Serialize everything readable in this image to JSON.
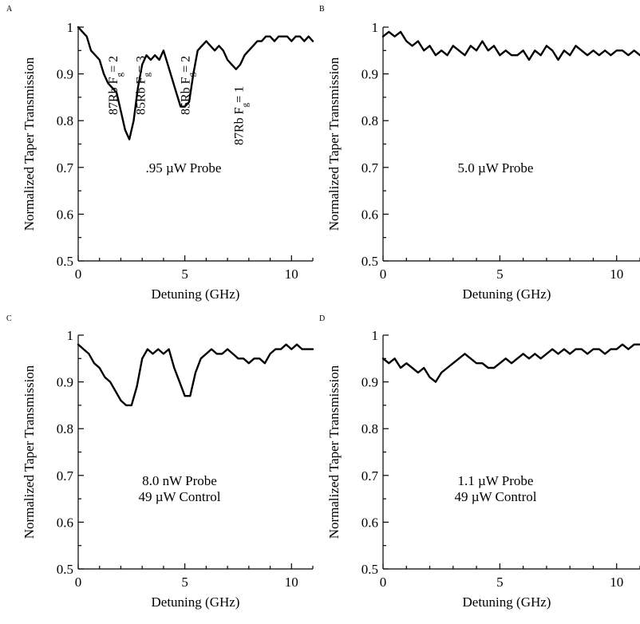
{
  "chart_data": [
    {
      "type": "line",
      "panel": "A",
      "xlabel": "Detuning (GHz)",
      "ylabel": "Normalized Taper Transmission",
      "xlim": [
        0,
        11
      ],
      "ylim": [
        0.5,
        1.0
      ],
      "xticks": [
        0,
        5,
        10
      ],
      "yticks": [
        0.5,
        0.6,
        0.7,
        0.8,
        0.9,
        1.0
      ],
      "ytick_labels": [
        "0.5",
        "0.6",
        "0.7",
        "0.8",
        "0.9",
        "1"
      ],
      "annotation_lines": [
        ".95 µW Probe"
      ],
      "peak_labels": [
        {
          "isotope": "87Rb",
          "f": "F",
          "sub": "g",
          "eq": "= 2",
          "x": 1.6
        },
        {
          "isotope": "85Rb",
          "f": "F",
          "sub": "g",
          "eq": "= 3",
          "x": 2.9
        },
        {
          "isotope": "85Rb",
          "f": "F",
          "sub": "g",
          "eq": "= 2",
          "x": 5.0
        },
        {
          "isotope": "87Rb",
          "f": "F",
          "sub": "g",
          "eq": "= 1",
          "x": 7.5
        }
      ],
      "series": [
        {
          "x": [
            0,
            0.2,
            0.4,
            0.6,
            0.8,
            1.0,
            1.2,
            1.4,
            1.6,
            1.8,
            2.0,
            2.2,
            2.4,
            2.6,
            2.8,
            3.0,
            3.2,
            3.4,
            3.6,
            3.8,
            4.0,
            4.2,
            4.4,
            4.6,
            4.8,
            5.0,
            5.2,
            5.4,
            5.6,
            5.8,
            6.0,
            6.2,
            6.4,
            6.6,
            6.8,
            7.0,
            7.2,
            7.4,
            7.6,
            7.8,
            8.0,
            8.2,
            8.4,
            8.6,
            8.8,
            9.0,
            9.2,
            9.4,
            9.6,
            9.8,
            10.0,
            10.2,
            10.4,
            10.6,
            10.8,
            11.0
          ],
          "y": [
            1.0,
            0.99,
            0.98,
            0.95,
            0.94,
            0.93,
            0.9,
            0.88,
            0.87,
            0.86,
            0.82,
            0.78,
            0.76,
            0.8,
            0.87,
            0.92,
            0.94,
            0.93,
            0.94,
            0.93,
            0.95,
            0.92,
            0.89,
            0.86,
            0.83,
            0.83,
            0.84,
            0.9,
            0.95,
            0.96,
            0.97,
            0.96,
            0.95,
            0.96,
            0.95,
            0.93,
            0.92,
            0.91,
            0.92,
            0.94,
            0.95,
            0.96,
            0.97,
            0.97,
            0.98,
            0.98,
            0.97,
            0.98,
            0.98,
            0.98,
            0.97,
            0.98,
            0.98,
            0.97,
            0.98,
            0.97
          ]
        }
      ]
    },
    {
      "type": "line",
      "panel": "B",
      "xlabel": "Detuning (GHz)",
      "ylabel": "Normalized Taper Transmission",
      "xlim": [
        0,
        11
      ],
      "ylim": [
        0.5,
        1.0
      ],
      "xticks": [
        0,
        5,
        10
      ],
      "yticks": [
        0.5,
        0.6,
        0.7,
        0.8,
        0.9,
        1.0
      ],
      "ytick_labels": [
        "0.5",
        "0.6",
        "0.7",
        "0.8",
        "0.9",
        "1"
      ],
      "annotation_lines": [
        "5.0 µW Probe"
      ],
      "peak_labels": [],
      "series": [
        {
          "x": [
            0,
            0.25,
            0.5,
            0.75,
            1.0,
            1.25,
            1.5,
            1.75,
            2.0,
            2.25,
            2.5,
            2.75,
            3.0,
            3.25,
            3.5,
            3.75,
            4.0,
            4.25,
            4.5,
            4.75,
            5.0,
            5.25,
            5.5,
            5.75,
            6.0,
            6.25,
            6.5,
            6.75,
            7.0,
            7.25,
            7.5,
            7.75,
            8.0,
            8.25,
            8.5,
            8.75,
            9.0,
            9.25,
            9.5,
            9.75,
            10.0,
            10.25,
            10.5,
            10.75,
            11.0
          ],
          "y": [
            0.98,
            0.99,
            0.98,
            0.99,
            0.97,
            0.96,
            0.97,
            0.95,
            0.96,
            0.94,
            0.95,
            0.94,
            0.96,
            0.95,
            0.94,
            0.96,
            0.95,
            0.97,
            0.95,
            0.96,
            0.94,
            0.95,
            0.94,
            0.94,
            0.95,
            0.93,
            0.95,
            0.94,
            0.96,
            0.95,
            0.93,
            0.95,
            0.94,
            0.96,
            0.95,
            0.94,
            0.95,
            0.94,
            0.95,
            0.94,
            0.95,
            0.95,
            0.94,
            0.95,
            0.94
          ]
        }
      ]
    },
    {
      "type": "line",
      "panel": "C",
      "xlabel": "Detuning (GHz)",
      "ylabel": "Normalized Taper Transmission",
      "xlim": [
        0,
        11
      ],
      "ylim": [
        0.5,
        1.0
      ],
      "xticks": [
        0,
        5,
        10
      ],
      "yticks": [
        0.5,
        0.6,
        0.7,
        0.8,
        0.9,
        1.0
      ],
      "ytick_labels": [
        "0.5",
        "0.6",
        "0.7",
        "0.8",
        "0.9",
        "1"
      ],
      "annotation_lines": [
        "8.0 nW Probe",
        "49 µW Control"
      ],
      "peak_labels": [],
      "series": [
        {
          "x": [
            0,
            0.25,
            0.5,
            0.75,
            1.0,
            1.25,
            1.5,
            1.75,
            2.0,
            2.25,
            2.5,
            2.75,
            3.0,
            3.25,
            3.5,
            3.75,
            4.0,
            4.25,
            4.5,
            4.75,
            5.0,
            5.25,
            5.5,
            5.75,
            6.0,
            6.25,
            6.5,
            6.75,
            7.0,
            7.25,
            7.5,
            7.75,
            8.0,
            8.25,
            8.5,
            8.75,
            9.0,
            9.25,
            9.5,
            9.75,
            10.0,
            10.25,
            10.5,
            10.75,
            11.0
          ],
          "y": [
            0.98,
            0.97,
            0.96,
            0.94,
            0.93,
            0.91,
            0.9,
            0.88,
            0.86,
            0.85,
            0.85,
            0.89,
            0.95,
            0.97,
            0.96,
            0.97,
            0.96,
            0.97,
            0.93,
            0.9,
            0.87,
            0.87,
            0.92,
            0.95,
            0.96,
            0.97,
            0.96,
            0.96,
            0.97,
            0.96,
            0.95,
            0.95,
            0.94,
            0.95,
            0.95,
            0.94,
            0.96,
            0.97,
            0.97,
            0.98,
            0.97,
            0.98,
            0.97,
            0.97,
            0.97
          ]
        }
      ]
    },
    {
      "type": "line",
      "panel": "D",
      "xlabel": "Detuning (GHz)",
      "ylabel": "Normalized Taper Transmission",
      "xlim": [
        0,
        11
      ],
      "ylim": [
        0.5,
        1.0
      ],
      "xticks": [
        0,
        5,
        10
      ],
      "yticks": [
        0.5,
        0.6,
        0.7,
        0.8,
        0.9,
        1.0
      ],
      "ytick_labels": [
        "0.5",
        "0.6",
        "0.7",
        "0.8",
        "0.9",
        "1"
      ],
      "annotation_lines": [
        "1.1 µW Probe",
        "49 µW Control"
      ],
      "peak_labels": [],
      "series": [
        {
          "x": [
            0,
            0.25,
            0.5,
            0.75,
            1.0,
            1.25,
            1.5,
            1.75,
            2.0,
            2.25,
            2.5,
            2.75,
            3.0,
            3.25,
            3.5,
            3.75,
            4.0,
            4.25,
            4.5,
            4.75,
            5.0,
            5.25,
            5.5,
            5.75,
            6.0,
            6.25,
            6.5,
            6.75,
            7.0,
            7.25,
            7.5,
            7.75,
            8.0,
            8.25,
            8.5,
            8.75,
            9.0,
            9.25,
            9.5,
            9.75,
            10.0,
            10.25,
            10.5,
            10.75,
            11.0
          ],
          "y": [
            0.95,
            0.94,
            0.95,
            0.93,
            0.94,
            0.93,
            0.92,
            0.93,
            0.91,
            0.9,
            0.92,
            0.93,
            0.94,
            0.95,
            0.96,
            0.95,
            0.94,
            0.94,
            0.93,
            0.93,
            0.94,
            0.95,
            0.94,
            0.95,
            0.96,
            0.95,
            0.96,
            0.95,
            0.96,
            0.97,
            0.96,
            0.97,
            0.96,
            0.97,
            0.97,
            0.96,
            0.97,
            0.97,
            0.96,
            0.97,
            0.97,
            0.98,
            0.97,
            0.98,
            0.98
          ]
        }
      ]
    }
  ]
}
